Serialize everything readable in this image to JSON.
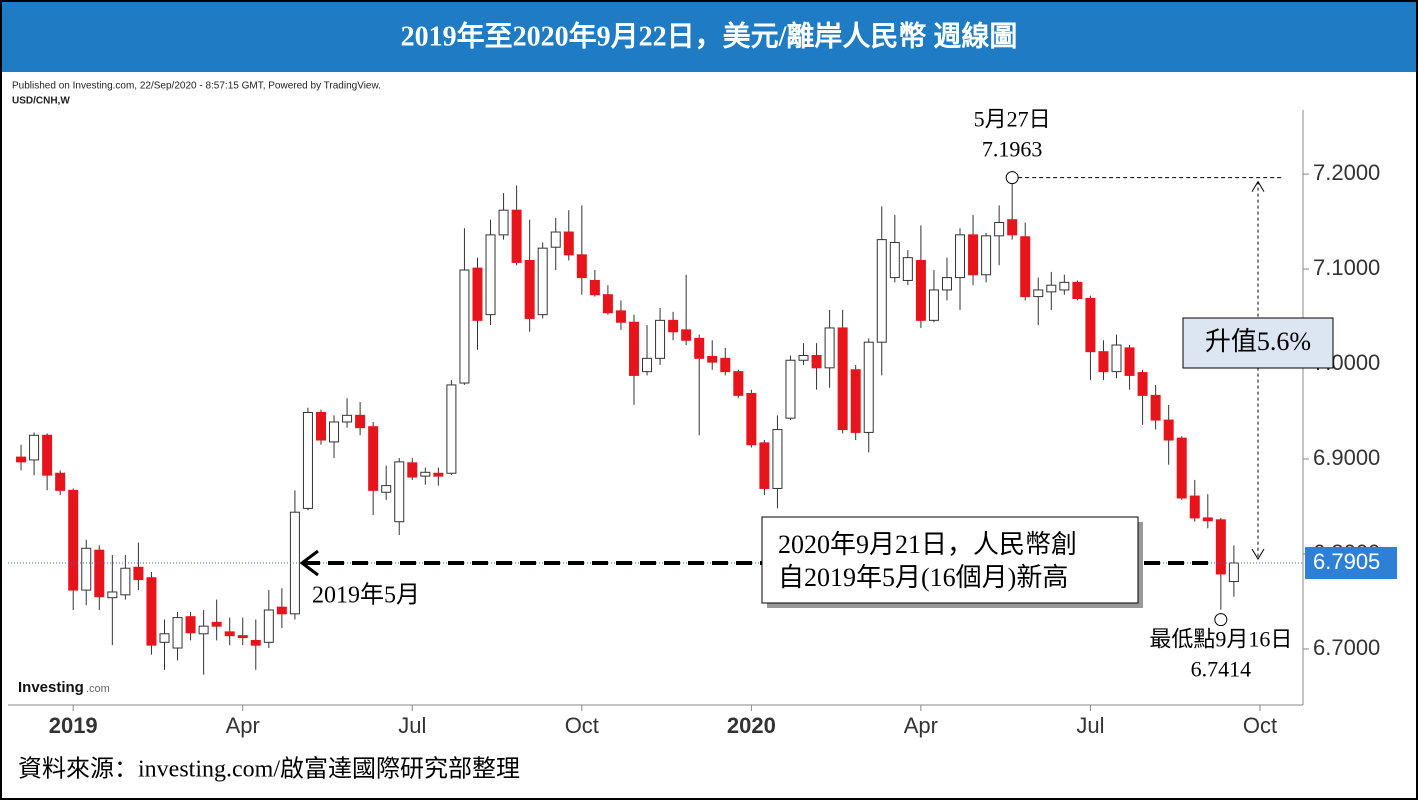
{
  "chart_data": {
    "type": "candlestick",
    "title": "2019年至2020年9月22日，美元/離岸人民幣 週線圖",
    "published": "Published on Investing.com, 22/Sep/2020 - 8:57:15 GMT, Powered by TradingView.",
    "symbol": "USD/CNH,W",
    "watermark": [
      "Investing",
      ".com"
    ],
    "source": "資料來源：investing.com/啟富達國際研究部整理",
    "up_color": "#ffffff",
    "down_color": "#e8141c",
    "open": [
      6.902,
      6.899,
      6.925,
      6.885,
      6.867,
      6.762,
      6.804,
      6.754,
      6.757,
      6.786,
      6.775,
      6.707,
      6.701,
      6.734,
      6.716,
      6.728,
      6.718,
      6.714,
      6.709,
      6.707,
      6.744,
      6.737,
      6.848,
      6.949,
      6.918,
      6.939,
      6.946,
      6.934,
      6.865,
      6.834,
      6.896,
      6.882,
      6.885,
      6.885,
      6.98,
      7.101,
      7.052,
      7.136,
      7.162,
      7.109,
      7.052,
      7.123,
      7.139,
      7.115,
      7.088,
      7.073,
      7.056,
      7.044,
      6.992,
      7.006,
      7.046,
      7.036,
      7.027,
      7.008,
      7.006,
      6.992,
      6.969,
      6.917,
      6.869,
      6.943,
      7.004,
      7.009,
      6.996,
      7.038,
      6.994,
      6.928,
      7.023,
      7.091,
      7.088,
      7.109,
      7.046,
      7.078,
      7.091,
      7.136,
      7.094,
      7.135,
      7.152,
      7.134,
      7.071,
      7.076,
      7.078,
      7.086,
      7.069,
      7.013,
      6.992,
      7.017,
      6.991,
      6.967,
      6.941,
      6.922,
      6.861,
      6.838,
      6.836,
      6.771
    ],
    "high": [
      6.915,
      6.928,
      6.927,
      6.888,
      6.869,
      6.815,
      6.809,
      6.799,
      6.799,
      6.812,
      6.781,
      6.731,
      6.739,
      6.739,
      6.741,
      6.752,
      6.733,
      6.733,
      6.731,
      6.762,
      6.764,
      6.867,
      6.954,
      6.952,
      6.946,
      6.964,
      6.96,
      6.939,
      6.893,
      6.901,
      6.901,
      6.891,
      6.891,
      6.983,
      7.143,
      7.112,
      7.152,
      7.18,
      7.188,
      7.152,
      7.128,
      7.154,
      7.162,
      7.167,
      7.099,
      7.083,
      7.067,
      7.052,
      7.041,
      7.059,
      7.055,
      7.094,
      7.031,
      7.025,
      7.017,
      6.994,
      6.973,
      6.92,
      6.946,
      7.009,
      7.022,
      7.022,
      7.057,
      7.057,
      6.999,
      7.027,
      7.166,
      7.157,
      7.12,
      7.146,
      7.099,
      7.112,
      7.143,
      7.157,
      7.138,
      7.167,
      7.1963,
      7.149,
      7.091,
      7.097,
      7.094,
      7.088,
      7.072,
      7.025,
      7.031,
      7.02,
      6.994,
      6.978,
      6.957,
      6.924,
      6.878,
      6.863,
      6.838,
      6.809
    ],
    "low": [
      6.888,
      6.883,
      6.867,
      6.862,
      6.741,
      6.746,
      6.741,
      6.704,
      6.752,
      6.762,
      6.694,
      6.678,
      6.688,
      6.709,
      6.673,
      6.709,
      6.704,
      6.704,
      6.678,
      6.701,
      6.722,
      6.731,
      6.846,
      6.915,
      6.901,
      6.933,
      6.925,
      6.841,
      6.857,
      6.82,
      6.878,
      6.873,
      6.872,
      6.883,
      6.978,
      7.015,
      7.041,
      7.131,
      7.104,
      7.034,
      7.048,
      7.099,
      7.109,
      7.073,
      7.071,
      7.052,
      7.036,
      6.957,
      6.988,
      6.999,
      7.025,
      7.02,
      6.925,
      6.994,
      6.988,
      6.964,
      6.912,
      6.862,
      6.848,
      6.941,
      6.999,
      6.973,
      6.975,
      6.927,
      6.92,
      6.907,
      6.988,
      7.086,
      7.083,
      7.038,
      7.044,
      7.067,
      7.057,
      7.083,
      7.086,
      7.104,
      7.131,
      7.067,
      7.041,
      7.057,
      7.073,
      7.067,
      6.983,
      6.983,
      6.985,
      6.973,
      6.936,
      6.931,
      6.894,
      6.857,
      6.834,
      6.827,
      6.7414,
      6.755
    ],
    "close": [
      6.897,
      6.925,
      6.883,
      6.867,
      6.762,
      6.806,
      6.755,
      6.76,
      6.785,
      6.773,
      6.704,
      6.716,
      6.733,
      6.717,
      6.724,
      6.724,
      6.714,
      6.712,
      6.704,
      6.741,
      6.737,
      6.844,
      6.949,
      6.92,
      6.939,
      6.946,
      6.933,
      6.867,
      6.872,
      6.897,
      6.881,
      6.886,
      6.882,
      6.978,
      7.099,
      7.046,
      7.136,
      7.162,
      7.107,
      7.048,
      7.122,
      7.139,
      7.115,
      7.091,
      7.073,
      7.054,
      7.044,
      6.988,
      7.006,
      7.046,
      7.034,
      7.025,
      7.006,
      7.002,
      6.992,
      6.967,
      6.915,
      6.869,
      6.931,
      7.004,
      7.009,
      6.996,
      7.038,
      6.931,
      6.928,
      7.023,
      7.131,
      7.128,
      7.112,
      7.046,
      7.078,
      7.091,
      7.136,
      7.094,
      7.135,
      7.149,
      7.136,
      7.071,
      7.078,
      7.083,
      7.086,
      7.069,
      7.013,
      6.992,
      7.02,
      6.988,
      6.967,
      6.941,
      6.92,
      6.859,
      6.838,
      6.835,
      6.779,
      6.7905
    ],
    "xlim": [
      -1,
      98.3
    ],
    "xticks": [
      {
        "value": 4,
        "label": "2019"
      },
      {
        "value": 17,
        "label": "Apr"
      },
      {
        "value": 30,
        "label": "Jul"
      },
      {
        "value": 43,
        "label": "Oct"
      },
      {
        "value": 56,
        "label": "2020"
      },
      {
        "value": 69,
        "label": "Apr"
      },
      {
        "value": 82,
        "label": "Jul"
      },
      {
        "value": 95,
        "label": "Oct"
      }
    ],
    "ylim": [
      6.641,
      7.278
    ],
    "yticks": [
      {
        "value": 6.7,
        "label": "6.7000"
      },
      {
        "value": 6.8,
        "label": "6.8000"
      },
      {
        "value": 6.9,
        "label": "6.9000"
      },
      {
        "value": 7.0,
        "label": "7.0000"
      },
      {
        "value": 7.1,
        "label": "7.1000"
      },
      {
        "value": 7.2,
        "label": "7.2000"
      }
    ],
    "annotations": {
      "peak": {
        "date": "5月27日",
        "value": 7.1963
      },
      "low": {
        "label": "最低點9月16日",
        "value": 6.7414
      },
      "last_price": 6.7905,
      "arrow_label": "2019年5月",
      "note": [
        "2020年9月21日，人民幣創",
        "自2019年5月(16個月)新高"
      ],
      "change": "升值5.6%"
    }
  }
}
